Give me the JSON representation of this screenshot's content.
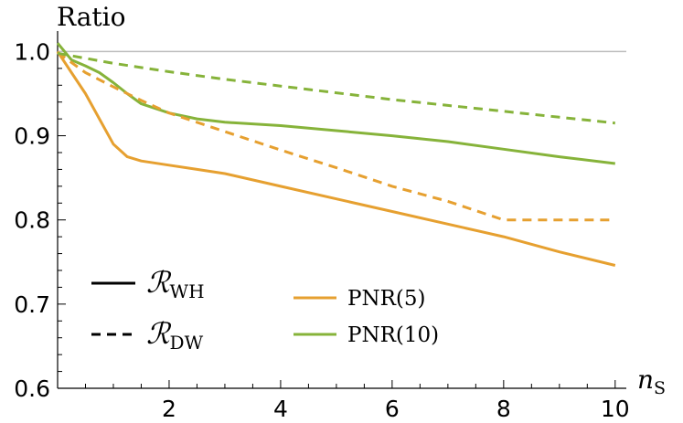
{
  "chart_data": {
    "type": "line",
    "title": "",
    "ylabel": "Ratio",
    "xlabel_main": "n",
    "xlabel_sub": "S",
    "xlim": [
      0,
      10.2
    ],
    "ylim": [
      0.6,
      1.02
    ],
    "x_ticks": [
      2,
      4,
      6,
      8,
      10
    ],
    "x_tick_labels": [
      "2",
      "4",
      "6",
      "8",
      "10"
    ],
    "y_ticks": [
      0.6,
      0.7,
      0.8,
      0.9,
      1.0
    ],
    "y_tick_labels": [
      "0.6",
      "0.7",
      "0.8",
      "0.9",
      "1.0"
    ],
    "reference_line": 1.0,
    "colors": {
      "pnr5": "#e6a030",
      "pnr10": "#86b33a",
      "reference": "#bdbdbd"
    },
    "legend_styles": [
      {
        "dash": "solid",
        "symbol": "ℛ",
        "sub": "WH"
      },
      {
        "dash": "dashed",
        "symbol": "ℛ",
        "sub": "DW"
      }
    ],
    "legend_colors": [
      {
        "color_key": "pnr5",
        "label": "PNR(5)"
      },
      {
        "color_key": "pnr10",
        "label": "PNR(10)"
      }
    ],
    "series": [
      {
        "color_key": "pnr5",
        "dash": "solid",
        "x": [
          0,
          0.25,
          0.5,
          0.75,
          1.0,
          1.25,
          1.5,
          2,
          2.5,
          3,
          4,
          5,
          6,
          7,
          8,
          9,
          10
        ],
        "y": [
          1.0,
          0.975,
          0.95,
          0.92,
          0.89,
          0.875,
          0.87,
          0.865,
          0.86,
          0.855,
          0.84,
          0.825,
          0.81,
          0.795,
          0.78,
          0.762,
          0.746
        ]
      },
      {
        "color_key": "pnr10",
        "dash": "solid",
        "x": [
          0,
          0.25,
          0.5,
          0.75,
          1.0,
          1.25,
          1.5,
          2,
          2.5,
          3,
          4,
          5,
          6,
          7,
          8,
          9,
          10
        ],
        "y": [
          1.01,
          0.99,
          0.983,
          0.975,
          0.963,
          0.95,
          0.938,
          0.927,
          0.92,
          0.916,
          0.912,
          0.906,
          0.9,
          0.893,
          0.884,
          0.875,
          0.867
        ]
      },
      {
        "color_key": "pnr5",
        "dash": "dashed",
        "x": [
          0,
          0.5,
          1,
          1.5,
          2,
          3,
          4,
          5,
          6,
          7,
          8,
          9,
          10
        ],
        "y": [
          0.999,
          0.975,
          0.958,
          0.942,
          0.927,
          0.905,
          0.883,
          0.862,
          0.84,
          0.822,
          0.8,
          0.8,
          0.8
        ]
      },
      {
        "color_key": "pnr10",
        "dash": "dashed",
        "x": [
          0,
          1,
          2,
          3,
          4,
          5,
          6,
          7,
          8,
          9,
          10
        ],
        "y": [
          0.998,
          0.986,
          0.976,
          0.967,
          0.959,
          0.951,
          0.943,
          0.936,
          0.929,
          0.922,
          0.915
        ]
      }
    ]
  }
}
